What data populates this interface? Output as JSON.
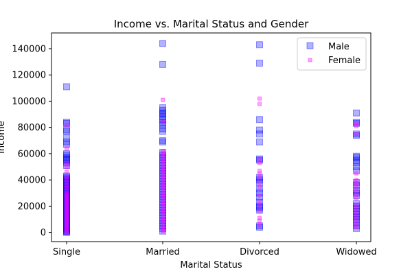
{
  "chart_data": {
    "type": "scatter",
    "title": "Income vs. Marital Status and Gender",
    "xlabel": "Marital Status",
    "ylabel": "Income",
    "categories": [
      "Single",
      "Married",
      "Divorced",
      "Widowed"
    ],
    "ylim": [
      -7000,
      152000
    ],
    "yticks": [
      0,
      20000,
      40000,
      60000,
      80000,
      100000,
      120000,
      140000
    ],
    "ytick_labels": [
      "0",
      "20000",
      "40000",
      "60000",
      "80000",
      "100000",
      "120000",
      "140000"
    ],
    "grid": false,
    "legend": {
      "position": "top-right"
    },
    "series": [
      {
        "name": "Male",
        "marker": "square",
        "color": "#0000ff",
        "points": [
          {
            "category": "Single",
            "values": [
              0,
              500,
              1000,
              2000,
              3000,
              4000,
              5000,
              6000,
              7000,
              8000,
              9000,
              10000,
              11000,
              12000,
              13000,
              14000,
              15000,
              16000,
              17000,
              18000,
              19000,
              20000,
              21000,
              22000,
              23000,
              24000,
              25000,
              26000,
              27000,
              28000,
              29000,
              30000,
              31000,
              32000,
              33000,
              34000,
              35000,
              36000,
              37000,
              38000,
              39000,
              40000,
              41000,
              42000,
              43000,
              51000,
              53000,
              55000,
              56000,
              57000,
              59000,
              60000,
              67000,
              69000,
              72000,
              77000,
              78000,
              83000,
              84000,
              111000
            ]
          },
          {
            "category": "Married",
            "values": [
              1000,
              3000,
              5000,
              7000,
              9000,
              11000,
              13000,
              15000,
              17000,
              19000,
              21000,
              23000,
              25000,
              27000,
              29000,
              31000,
              33000,
              35000,
              37000,
              39000,
              41000,
              43000,
              45000,
              47000,
              49000,
              51000,
              53000,
              55000,
              57000,
              59000,
              61000,
              69000,
              70000,
              77000,
              79000,
              82000,
              84000,
              86000,
              88000,
              90000,
              91000,
              93000,
              95000,
              128000,
              144000
            ]
          },
          {
            "category": "Divorced",
            "values": [
              4000,
              5000,
              17000,
              19000,
              20000,
              23000,
              27000,
              30000,
              33000,
              38000,
              40000,
              42000,
              55000,
              56000,
              69000,
              75000,
              78000,
              86000,
              129000,
              143000
            ]
          },
          {
            "category": "Widowed",
            "values": [
              3000,
              5000,
              8000,
              10000,
              12000,
              14000,
              16000,
              18000,
              20000,
              22000,
              28000,
              30000,
              32000,
              36000,
              38000,
              47000,
              50000,
              53000,
              55000,
              57000,
              58000,
              74000,
              75000,
              83000,
              84000,
              91000
            ]
          }
        ]
      },
      {
        "name": "Female",
        "marker": "square",
        "color": "#ff00ff",
        "points": [
          {
            "category": "Single",
            "values": [
              0,
              1000,
              2000,
              3000,
              4000,
              5000,
              6000,
              7000,
              8000,
              9000,
              10000,
              11000,
              12000,
              13000,
              14000,
              15000,
              16000,
              17000,
              18000,
              19000,
              20000,
              21000,
              22000,
              23000,
              24000,
              25000,
              26000,
              27000,
              28000,
              29000,
              30000,
              32000,
              34000,
              36000,
              38000,
              40000,
              42000,
              46000,
              50000,
              53000,
              64000,
              82000
            ]
          },
          {
            "category": "Married",
            "values": [
              1000,
              2000,
              4000,
              6000,
              8000,
              10000,
              12000,
              14000,
              16000,
              18000,
              20000,
              22000,
              24000,
              26000,
              28000,
              30000,
              32000,
              34000,
              36000,
              38000,
              40000,
              42000,
              44000,
              46000,
              48000,
              50000,
              52000,
              54000,
              56000,
              58000,
              60000,
              62000,
              84000,
              101000
            ]
          },
          {
            "category": "Divorced",
            "values": [
              6000,
              9000,
              11000,
              16000,
              20000,
              24000,
              28000,
              34000,
              38000,
              42000,
              45000,
              47000,
              53000,
              56000,
              98000,
              102000
            ]
          },
          {
            "category": "Widowed",
            "values": [
              4000,
              6000,
              9000,
              12000,
              15000,
              18000,
              21000,
              26000,
              29000,
              33000,
              36000,
              38000,
              40000,
              45000,
              75000,
              81000,
              83000
            ]
          }
        ]
      }
    ]
  }
}
